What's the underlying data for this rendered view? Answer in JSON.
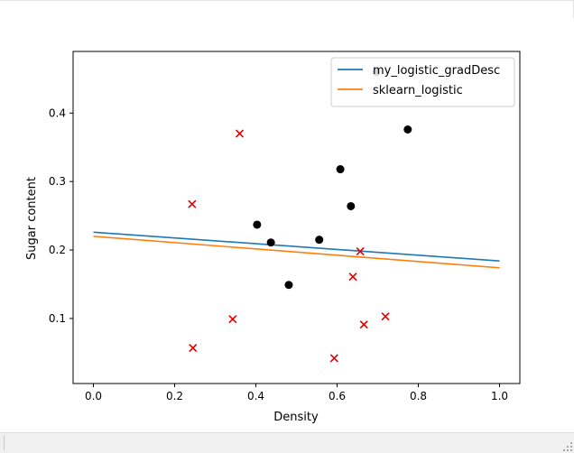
{
  "chart_data": {
    "type": "scatter",
    "xlabel": "Density",
    "ylabel": "Sugar content",
    "xlim": [
      -0.05,
      1.05
    ],
    "ylim": [
      0.005,
      0.49
    ],
    "x_ticks": [
      0.0,
      0.2,
      0.4,
      0.6,
      0.8,
      1.0
    ],
    "x_tick_labels": [
      "0.0",
      "0.2",
      "0.4",
      "0.6",
      "0.8",
      "1.0"
    ],
    "y_ticks": [
      0.1,
      0.2,
      0.3,
      0.4
    ],
    "y_tick_labels": [
      "0.1",
      "0.2",
      "0.3",
      "0.4"
    ],
    "grid": false,
    "legend": "top-right",
    "series": [
      {
        "name": "my_logistic_gradDesc",
        "kind": "line",
        "color": "#1f77b4",
        "x": [
          0.0,
          1.0
        ],
        "y": [
          0.226,
          0.184
        ]
      },
      {
        "name": "sklearn_logistic",
        "kind": "line",
        "color": "#ff7f0e",
        "x": [
          0.0,
          1.0
        ],
        "y": [
          0.22,
          0.174
        ]
      },
      {
        "kind": "scatter",
        "marker": "circle",
        "color": "#000000",
        "x": [
          0.697,
          0.774,
          0.634,
          0.608,
          0.556,
          0.403,
          0.481,
          0.437
        ],
        "y": [
          0.46,
          0.376,
          0.264,
          0.318,
          0.215,
          0.237,
          0.149,
          0.211
        ]
      },
      {
        "kind": "scatter",
        "marker": "x",
        "color": "#e00000",
        "x": [
          0.666,
          0.243,
          0.245,
          0.343,
          0.639,
          0.657,
          0.36,
          0.593,
          0.719
        ],
        "y": [
          0.091,
          0.267,
          0.057,
          0.099,
          0.161,
          0.198,
          0.37,
          0.042,
          0.103
        ]
      }
    ]
  }
}
